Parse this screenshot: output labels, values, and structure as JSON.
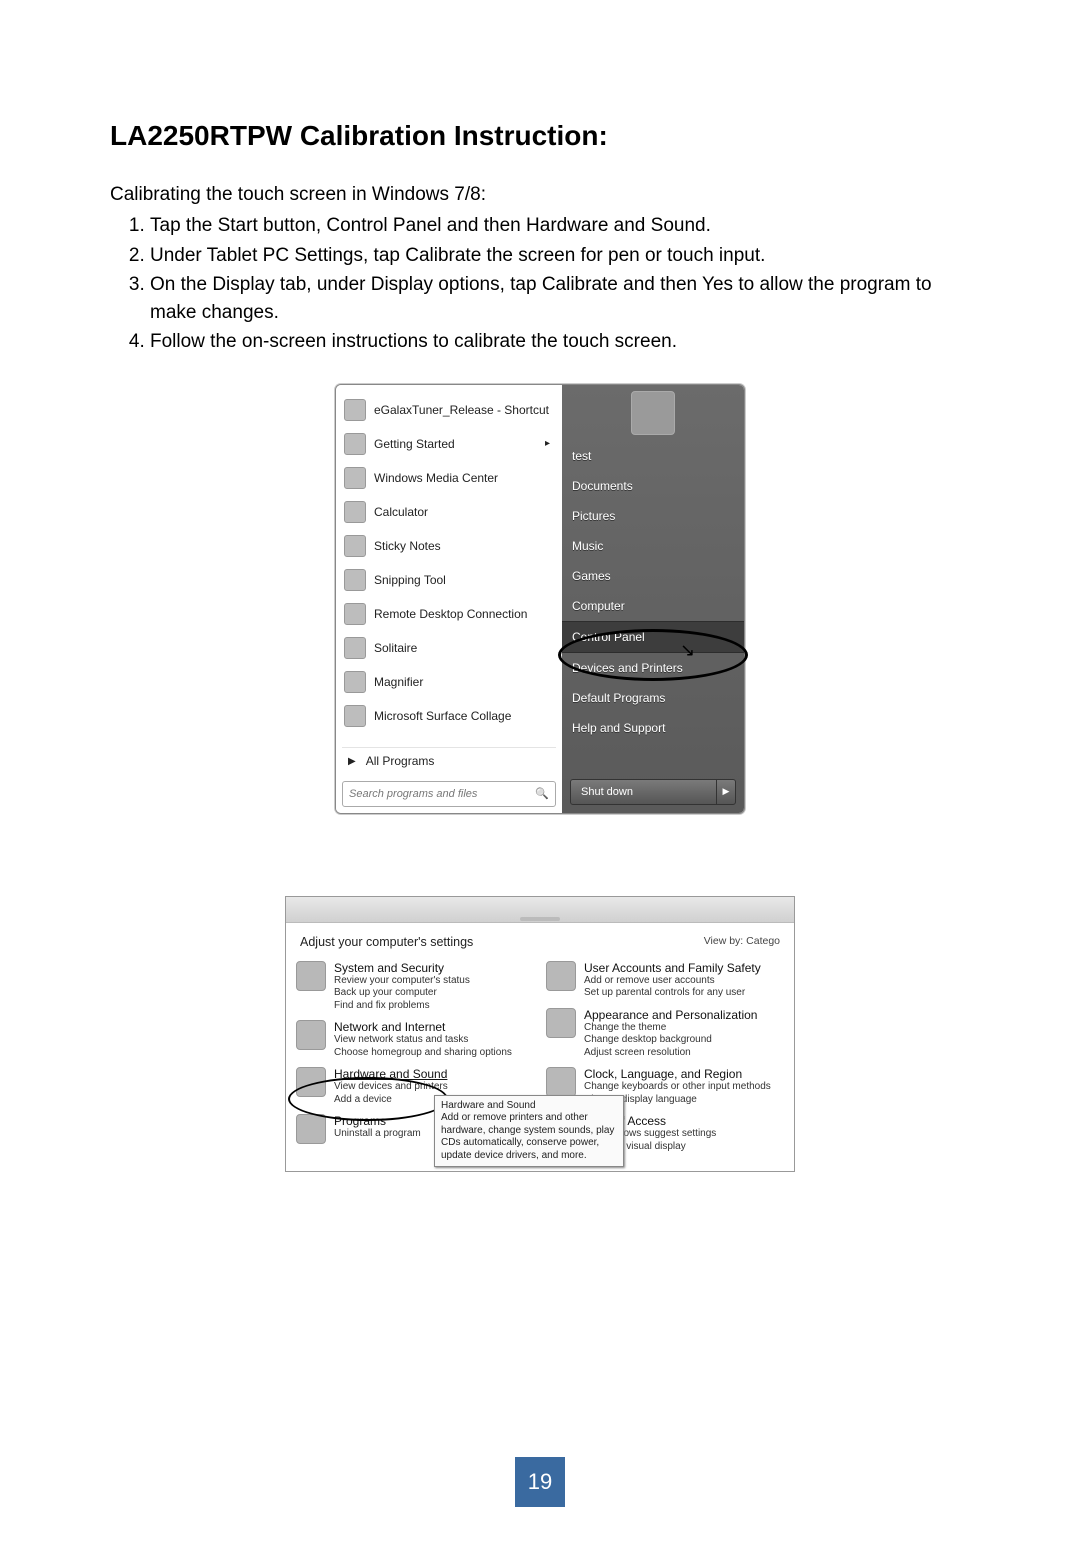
{
  "title": "LA2250RTPW Calibration Instruction:",
  "intro": "Calibrating the touch screen in Windows 7/8:",
  "steps": [
    "Tap the Start button, Control Panel and then Hardware and Sound.",
    "Under Tablet PC Settings, tap Calibrate the screen for pen or touch input.",
    "On the Display tab, under Display options, tap Calibrate and then Yes to allow the program to make changes.",
    "Follow the on-screen instructions to calibrate the touch screen."
  ],
  "startmenu": {
    "left_items": [
      "eGalaxTuner_Release - Shortcut",
      "Getting Started",
      "Windows Media Center",
      "Calculator",
      "Sticky Notes",
      "Snipping Tool",
      "Remote Desktop Connection",
      "Solitaire",
      "Magnifier",
      "Microsoft Surface Collage"
    ],
    "getting_started_has_arrow": true,
    "all_programs": "All Programs",
    "search_placeholder": "Search programs and files",
    "right_user": "test",
    "right_links": [
      "Documents",
      "Pictures",
      "Music",
      "Games",
      "Computer",
      "Control Panel",
      "Devices and Printers",
      "Default Programs",
      "Help and Support"
    ],
    "selected_right_link": "Control Panel",
    "shutdown_label": "Shut down"
  },
  "control_panel": {
    "header": "Adjust your computer's settings",
    "viewby_label": "View by:",
    "viewby_value": "Catego",
    "left_categories": [
      {
        "title": "System and Security",
        "links": [
          "Review your computer's status",
          "Back up your computer",
          "Find and fix problems"
        ]
      },
      {
        "title": "Network and Internet",
        "links": [
          "View network status and tasks",
          "Choose homegroup and sharing options"
        ]
      },
      {
        "title": "Hardware and Sound",
        "links": [
          "View devices and printers",
          "Add a device"
        ]
      },
      {
        "title": "Programs",
        "links": [
          "Uninstall a program"
        ]
      }
    ],
    "right_categories": [
      {
        "title": "User Accounts and Family Safety",
        "links": [
          "Add or remove user accounts",
          "Set up parental controls for any user"
        ]
      },
      {
        "title": "Appearance and Personalization",
        "links": [
          "Change the theme",
          "Change desktop background",
          "Adjust screen resolution"
        ]
      },
      {
        "title": "Clock, Language, and Region",
        "links": [
          "Change keyboards or other input methods",
          "Change display language"
        ]
      },
      {
        "title": "Ease of Access",
        "links": [
          "Let Windows suggest settings",
          "Optimize visual display"
        ]
      }
    ],
    "tooltip_title": "Hardware and Sound",
    "tooltip_body": "Add or remove printers and other hardware, change system sounds, play CDs automatically, conserve power, update device drivers, and more."
  },
  "page_number": "19"
}
